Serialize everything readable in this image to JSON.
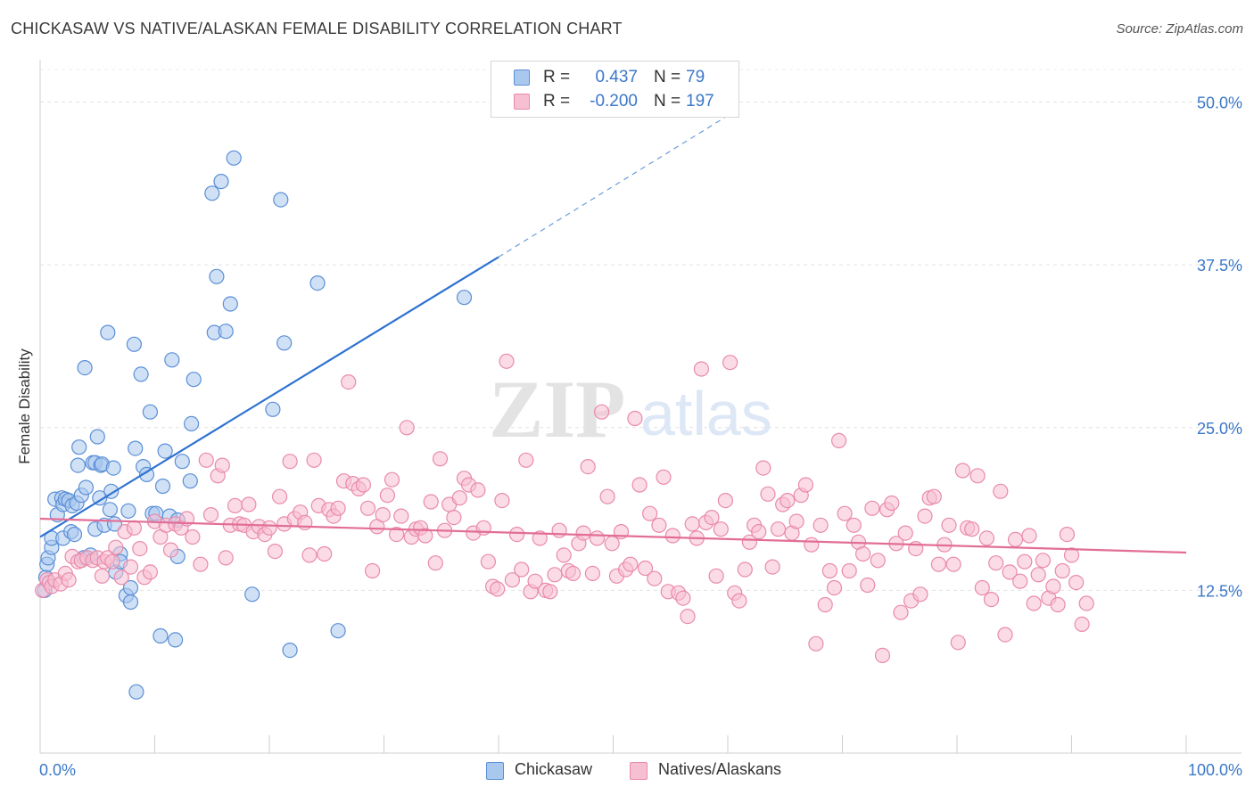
{
  "title": "CHICKASAW VS NATIVE/ALASKAN FEMALE DISABILITY CORRELATION CHART",
  "source": "Source: ZipAtlas.com",
  "watermark": {
    "zip": "ZIP",
    "atlas": "atlas"
  },
  "legend": {
    "r_label": "R =",
    "n_label": "N =",
    "rows": [
      {
        "r": "0.437",
        "n": "79",
        "fill": "#a9c8ee",
        "stroke": "#5b8fd6"
      },
      {
        "r": "-0.200",
        "n": "197",
        "fill": "#f7bfd2",
        "stroke": "#e98aab"
      }
    ]
  },
  "bottom_legend": [
    {
      "label": "Chickasaw",
      "fill": "#a9c8ee",
      "stroke": "#5b8fd6"
    },
    {
      "label": "Natives/Alaskans",
      "fill": "#f7bfd2",
      "stroke": "#e98aab"
    }
  ],
  "chart_data": {
    "type": "scatter",
    "xlabel": "",
    "ylabel": "Female Disability",
    "xlim": [
      0,
      100
    ],
    "ylim": [
      0,
      52.5
    ],
    "x_tick_labels": [
      "0.0%",
      "100.0%"
    ],
    "y_ticks": [
      12.5,
      25.0,
      37.5,
      50.0
    ],
    "y_tick_labels": [
      "12.5%",
      "25.0%",
      "37.5%",
      "50.0%"
    ],
    "grid": true,
    "series": [
      {
        "name": "Chickasaw",
        "color": "#5b8fd6",
        "fill": "#a9c8ee",
        "trend": {
          "x0": 0,
          "y0": 16.6,
          "x1": 40,
          "y1": 38.1,
          "dash_to_x": 61,
          "dash_to_y": 49.5,
          "color": "#2f73d0"
        },
        "points": [
          [
            0.4,
            12.5
          ],
          [
            0.5,
            13.5
          ],
          [
            0.6,
            14.5
          ],
          [
            0.7,
            15.0
          ],
          [
            1.0,
            15.8
          ],
          [
            1.0,
            16.5
          ],
          [
            1.3,
            19.5
          ],
          [
            1.5,
            18.3
          ],
          [
            1.9,
            19.6
          ],
          [
            2.0,
            16.5
          ],
          [
            2.0,
            19.1
          ],
          [
            2.2,
            19.5
          ],
          [
            2.5,
            19.4
          ],
          [
            2.7,
            17.0
          ],
          [
            2.8,
            19.0
          ],
          [
            3.0,
            16.8
          ],
          [
            3.2,
            19.2
          ],
          [
            3.3,
            22.1
          ],
          [
            3.4,
            23.5
          ],
          [
            3.6,
            19.8
          ],
          [
            3.8,
            15.0
          ],
          [
            3.9,
            29.6
          ],
          [
            4.0,
            20.4
          ],
          [
            4.4,
            15.2
          ],
          [
            4.6,
            22.3
          ],
          [
            4.8,
            17.2
          ],
          [
            4.8,
            22.3
          ],
          [
            5.0,
            24.3
          ],
          [
            5.2,
            19.6
          ],
          [
            5.3,
            22.1
          ],
          [
            5.4,
            22.2
          ],
          [
            5.6,
            17.5
          ],
          [
            5.9,
            32.3
          ],
          [
            6.1,
            18.7
          ],
          [
            6.2,
            20.1
          ],
          [
            6.4,
            21.9
          ],
          [
            6.5,
            17.6
          ],
          [
            6.6,
            13.9
          ],
          [
            7.0,
            15.3
          ],
          [
            7.0,
            14.7
          ],
          [
            7.5,
            12.1
          ],
          [
            7.7,
            18.6
          ],
          [
            7.9,
            11.6
          ],
          [
            7.9,
            12.7
          ],
          [
            8.2,
            31.4
          ],
          [
            8.3,
            23.4
          ],
          [
            8.4,
            4.7
          ],
          [
            8.8,
            29.1
          ],
          [
            9.0,
            22.0
          ],
          [
            9.3,
            21.4
          ],
          [
            9.6,
            26.2
          ],
          [
            9.8,
            18.4
          ],
          [
            10.1,
            18.4
          ],
          [
            10.5,
            9.0
          ],
          [
            10.7,
            20.5
          ],
          [
            10.9,
            23.2
          ],
          [
            11.3,
            18.2
          ],
          [
            11.5,
            30.2
          ],
          [
            11.8,
            8.7
          ],
          [
            12.0,
            15.1
          ],
          [
            12.0,
            17.9
          ],
          [
            12.4,
            22.4
          ],
          [
            13.1,
            20.9
          ],
          [
            13.2,
            25.3
          ],
          [
            13.4,
            28.7
          ],
          [
            15.0,
            43.0
          ],
          [
            15.2,
            32.3
          ],
          [
            15.4,
            36.6
          ],
          [
            15.8,
            43.9
          ],
          [
            16.2,
            32.4
          ],
          [
            16.6,
            34.5
          ],
          [
            16.9,
            45.7
          ],
          [
            18.5,
            12.2
          ],
          [
            20.3,
            26.4
          ],
          [
            21.0,
            42.5
          ],
          [
            21.3,
            31.5
          ],
          [
            21.8,
            7.9
          ],
          [
            24.2,
            36.1
          ],
          [
            26.0,
            9.4
          ],
          [
            37.0,
            35.0
          ]
        ]
      },
      {
        "name": "Natives/Alaskans",
        "color": "#e98aab",
        "fill": "#f7bfd2",
        "trend": {
          "x0": 0,
          "y0": 18.0,
          "x1": 100,
          "y1": 15.4,
          "color": "#e26e97"
        },
        "points": [
          [
            0.2,
            12.5
          ],
          [
            0.6,
            13.3
          ],
          [
            0.8,
            13.1
          ],
          [
            1.0,
            12.8
          ],
          [
            1.3,
            13.3
          ],
          [
            1.8,
            13.0
          ],
          [
            2.2,
            13.8
          ],
          [
            2.5,
            13.3
          ],
          [
            2.8,
            15.1
          ],
          [
            3.3,
            14.7
          ],
          [
            3.6,
            14.8
          ],
          [
            4.1,
            15.0
          ],
          [
            4.6,
            14.8
          ],
          [
            5.0,
            15.0
          ],
          [
            5.4,
            13.6
          ],
          [
            5.6,
            14.7
          ],
          [
            5.9,
            15.0
          ],
          [
            6.3,
            14.7
          ],
          [
            6.6,
            15.8
          ],
          [
            7.1,
            13.5
          ],
          [
            7.4,
            17.0
          ],
          [
            7.9,
            14.3
          ],
          [
            8.2,
            17.3
          ],
          [
            8.7,
            15.7
          ],
          [
            9.1,
            13.5
          ],
          [
            9.6,
            13.9
          ],
          [
            10.0,
            17.8
          ],
          [
            10.5,
            16.6
          ],
          [
            11.0,
            17.5
          ],
          [
            11.4,
            15.6
          ],
          [
            11.8,
            17.6
          ],
          [
            12.3,
            17.3
          ],
          [
            12.8,
            18.0
          ],
          [
            13.3,
            16.6
          ],
          [
            14.0,
            14.5
          ],
          [
            14.5,
            22.5
          ],
          [
            14.9,
            18.3
          ],
          [
            15.5,
            21.3
          ],
          [
            15.9,
            22.1
          ],
          [
            16.2,
            15.0
          ],
          [
            16.6,
            17.5
          ],
          [
            17.0,
            19.0
          ],
          [
            17.4,
            17.6
          ],
          [
            17.8,
            17.5
          ],
          [
            18.2,
            19.1
          ],
          [
            18.6,
            17.0
          ],
          [
            19.1,
            17.4
          ],
          [
            19.6,
            16.8
          ],
          [
            20.0,
            17.3
          ],
          [
            20.5,
            15.5
          ],
          [
            20.9,
            19.7
          ],
          [
            21.3,
            17.6
          ],
          [
            21.8,
            22.4
          ],
          [
            22.2,
            18.0
          ],
          [
            22.7,
            18.5
          ],
          [
            23.1,
            17.7
          ],
          [
            23.5,
            15.2
          ],
          [
            23.9,
            22.5
          ],
          [
            24.3,
            19.0
          ],
          [
            24.8,
            15.3
          ],
          [
            25.2,
            18.7
          ],
          [
            25.6,
            18.2
          ],
          [
            26.0,
            18.8
          ],
          [
            26.5,
            20.9
          ],
          [
            26.9,
            28.5
          ],
          [
            27.3,
            20.7
          ],
          [
            27.8,
            20.3
          ],
          [
            28.2,
            20.6
          ],
          [
            28.6,
            18.8
          ],
          [
            29.0,
            14.0
          ],
          [
            29.4,
            17.4
          ],
          [
            29.9,
            18.3
          ],
          [
            30.3,
            19.8
          ],
          [
            30.7,
            21.0
          ],
          [
            31.1,
            16.8
          ],
          [
            31.5,
            18.2
          ],
          [
            32.0,
            25.0
          ],
          [
            32.4,
            16.6
          ],
          [
            32.8,
            17.2
          ],
          [
            33.2,
            17.3
          ],
          [
            33.6,
            16.7
          ],
          [
            34.1,
            19.3
          ],
          [
            34.5,
            14.6
          ],
          [
            34.9,
            22.6
          ],
          [
            35.3,
            17.1
          ],
          [
            35.7,
            19.1
          ],
          [
            36.1,
            18.1
          ],
          [
            36.6,
            19.6
          ],
          [
            37.0,
            21.1
          ],
          [
            37.4,
            20.6
          ],
          [
            37.8,
            16.9
          ],
          [
            38.2,
            20.2
          ],
          [
            38.7,
            17.3
          ],
          [
            39.1,
            14.7
          ],
          [
            39.5,
            12.8
          ],
          [
            39.9,
            12.6
          ],
          [
            40.3,
            19.4
          ],
          [
            40.7,
            30.1
          ],
          [
            41.2,
            13.3
          ],
          [
            41.6,
            16.8
          ],
          [
            42.0,
            14.1
          ],
          [
            42.4,
            22.5
          ],
          [
            42.8,
            12.4
          ],
          [
            43.2,
            13.2
          ],
          [
            43.6,
            16.5
          ],
          [
            44.1,
            12.5
          ],
          [
            44.5,
            12.4
          ],
          [
            44.9,
            13.7
          ],
          [
            45.3,
            17.1
          ],
          [
            45.7,
            15.2
          ],
          [
            46.1,
            14.0
          ],
          [
            46.5,
            13.8
          ],
          [
            47.0,
            16.1
          ],
          [
            47.4,
            16.9
          ],
          [
            47.8,
            22.0
          ],
          [
            48.2,
            13.8
          ],
          [
            48.6,
            16.5
          ],
          [
            49.0,
            26.2
          ],
          [
            49.5,
            19.7
          ],
          [
            49.9,
            16.1
          ],
          [
            50.3,
            13.6
          ],
          [
            50.7,
            17.0
          ],
          [
            51.1,
            14.1
          ],
          [
            51.5,
            14.5
          ],
          [
            51.9,
            25.7
          ],
          [
            52.3,
            20.6
          ],
          [
            52.8,
            14.2
          ],
          [
            53.2,
            18.4
          ],
          [
            53.6,
            13.4
          ],
          [
            54.0,
            17.5
          ],
          [
            54.4,
            21.2
          ],
          [
            54.8,
            12.4
          ],
          [
            55.2,
            16.7
          ],
          [
            55.7,
            12.3
          ],
          [
            56.1,
            11.9
          ],
          [
            56.5,
            10.5
          ],
          [
            56.9,
            17.6
          ],
          [
            57.3,
            16.5
          ],
          [
            57.7,
            29.5
          ],
          [
            58.1,
            17.7
          ],
          [
            58.6,
            18.1
          ],
          [
            59.0,
            13.6
          ],
          [
            59.4,
            17.2
          ],
          [
            59.8,
            19.4
          ],
          [
            60.2,
            30.0
          ],
          [
            60.6,
            12.3
          ],
          [
            61.0,
            11.7
          ],
          [
            61.5,
            14.1
          ],
          [
            61.9,
            16.2
          ],
          [
            62.3,
            17.5
          ],
          [
            62.7,
            17.0
          ],
          [
            63.1,
            21.9
          ],
          [
            63.5,
            19.9
          ],
          [
            63.9,
            14.3
          ],
          [
            64.4,
            17.2
          ],
          [
            64.8,
            19.1
          ],
          [
            65.2,
            19.4
          ],
          [
            65.6,
            16.9
          ],
          [
            66.0,
            17.8
          ],
          [
            66.4,
            19.8
          ],
          [
            66.8,
            20.6
          ],
          [
            67.3,
            16.0
          ],
          [
            67.7,
            8.4
          ],
          [
            68.1,
            17.5
          ],
          [
            68.5,
            11.4
          ],
          [
            68.9,
            14.0
          ],
          [
            69.3,
            12.7
          ],
          [
            69.7,
            24.0
          ],
          [
            70.2,
            18.4
          ],
          [
            70.6,
            14.0
          ],
          [
            71.0,
            17.5
          ],
          [
            71.4,
            16.2
          ],
          [
            71.8,
            15.3
          ],
          [
            72.2,
            12.9
          ],
          [
            72.6,
            18.8
          ],
          [
            73.1,
            14.8
          ],
          [
            73.5,
            7.5
          ],
          [
            73.9,
            18.7
          ],
          [
            74.3,
            19.2
          ],
          [
            74.7,
            16.1
          ],
          [
            75.1,
            10.8
          ],
          [
            75.5,
            16.9
          ],
          [
            76.0,
            11.7
          ],
          [
            76.4,
            15.7
          ],
          [
            76.8,
            12.2
          ],
          [
            77.2,
            18.2
          ],
          [
            77.6,
            19.6
          ],
          [
            78.0,
            19.7
          ],
          [
            78.4,
            14.5
          ],
          [
            78.9,
            16.0
          ],
          [
            79.3,
            17.5
          ],
          [
            79.7,
            14.5
          ],
          [
            80.1,
            8.5
          ],
          [
            80.5,
            21.7
          ],
          [
            80.9,
            17.3
          ],
          [
            81.3,
            17.2
          ],
          [
            81.8,
            21.3
          ],
          [
            82.2,
            12.7
          ],
          [
            82.6,
            16.5
          ],
          [
            83.0,
            11.8
          ],
          [
            83.4,
            14.6
          ],
          [
            83.8,
            20.1
          ],
          [
            84.2,
            9.1
          ],
          [
            84.6,
            13.9
          ],
          [
            85.1,
            16.4
          ],
          [
            85.5,
            13.2
          ],
          [
            85.9,
            14.7
          ],
          [
            86.3,
            16.7
          ],
          [
            86.7,
            11.5
          ],
          [
            87.1,
            13.7
          ],
          [
            87.5,
            14.8
          ],
          [
            88.0,
            11.9
          ],
          [
            88.4,
            12.8
          ],
          [
            88.8,
            11.4
          ],
          [
            89.2,
            14.0
          ],
          [
            89.6,
            16.8
          ],
          [
            90.0,
            15.2
          ],
          [
            90.4,
            13.1
          ],
          [
            90.9,
            9.9
          ],
          [
            91.3,
            11.5
          ]
        ]
      }
    ]
  }
}
